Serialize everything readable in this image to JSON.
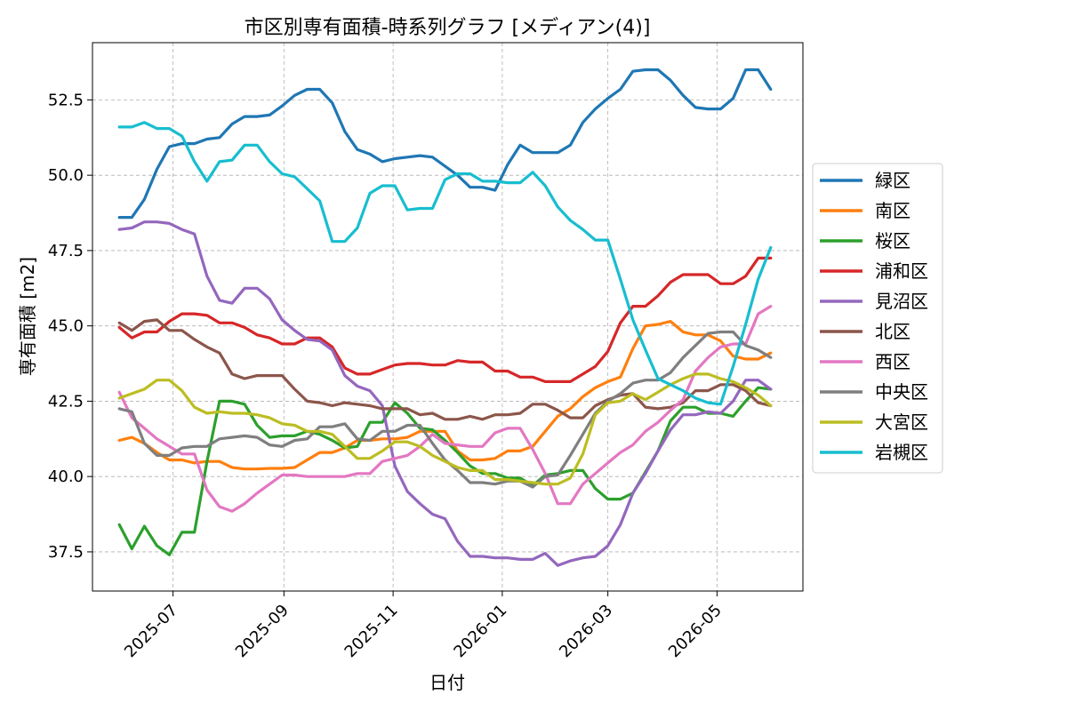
{
  "chart_data": {
    "type": "line",
    "title": "市区別専有面積-時系列グラフ [メディアン(4)]",
    "xlabel": "日付",
    "ylabel": "専有面積 [m2]",
    "x_range": [
      "2025-05-17",
      "2026-06-18"
    ],
    "ylim": [
      36.2,
      54.4
    ],
    "grid": true,
    "legend_position": "right",
    "x_ticks": [
      "2025-07-01",
      "2025-09-01",
      "2025-11-01",
      "2026-01-01",
      "2026-03-01",
      "2026-05-01"
    ],
    "x_tick_labels": [
      "2025-07",
      "2025-09",
      "2025-11",
      "2026-01",
      "2026-03",
      "2026-05"
    ],
    "y_ticks": [
      37.5,
      40.0,
      42.5,
      45.0,
      47.5,
      50.0,
      52.5
    ],
    "y_tick_labels": [
      "37.5",
      "40.0",
      "42.5",
      "45.0",
      "47.5",
      "50.0",
      "52.5"
    ],
    "x": [
      "2025-06-01",
      "2025-06-08",
      "2025-06-15",
      "2025-06-22",
      "2025-06-29",
      "2025-07-06",
      "2025-07-13",
      "2025-07-20",
      "2025-07-27",
      "2025-08-03",
      "2025-08-10",
      "2025-08-17",
      "2025-08-24",
      "2025-08-31",
      "2025-09-07",
      "2025-09-14",
      "2025-09-21",
      "2025-09-28",
      "2025-10-05",
      "2025-10-12",
      "2025-10-19",
      "2025-10-26",
      "2025-11-02",
      "2025-11-09",
      "2025-11-16",
      "2025-11-23",
      "2025-11-30",
      "2025-12-07",
      "2025-12-14",
      "2025-12-21",
      "2025-12-28",
      "2026-01-04",
      "2026-01-11",
      "2026-01-18",
      "2026-01-25",
      "2026-02-01",
      "2026-02-08",
      "2026-02-15",
      "2026-02-22",
      "2026-03-01",
      "2026-03-08",
      "2026-03-15",
      "2026-03-22",
      "2026-03-29",
      "2026-04-05",
      "2026-04-12",
      "2026-04-19",
      "2026-04-26",
      "2026-05-03",
      "2026-05-10",
      "2026-05-17",
      "2026-05-24",
      "2026-05-31"
    ],
    "series": [
      {
        "name": "緑区",
        "color": "#1f77b4",
        "values": [
          48.6,
          48.6,
          49.2,
          50.2,
          50.95,
          51.05,
          51.05,
          51.2,
          51.25,
          51.7,
          51.95,
          51.95,
          52.0,
          52.3,
          52.65,
          52.85,
          52.85,
          52.4,
          51.45,
          50.85,
          50.7,
          50.45,
          50.55,
          50.6,
          50.65,
          50.6,
          50.3,
          50.0,
          49.6,
          49.6,
          49.5,
          50.35,
          51.0,
          50.75,
          50.75,
          50.75,
          51.0,
          51.75,
          52.2,
          52.55,
          52.85,
          53.45,
          53.5,
          53.5,
          53.15,
          52.65,
          52.25,
          52.2,
          52.2,
          52.55,
          53.5,
          53.5,
          52.85
        ]
      },
      {
        "name": "南区",
        "color": "#ff7f0e",
        "values": [
          41.2,
          41.3,
          41.1,
          40.8,
          40.55,
          40.55,
          40.45,
          40.5,
          40.5,
          40.3,
          40.25,
          40.25,
          40.27,
          40.27,
          40.3,
          40.55,
          40.8,
          40.8,
          40.95,
          41.2,
          41.2,
          41.25,
          41.25,
          41.3,
          41.5,
          41.5,
          41.5,
          40.85,
          40.55,
          40.55,
          40.6,
          40.85,
          40.85,
          41.0,
          41.5,
          42.0,
          42.25,
          42.65,
          42.95,
          43.15,
          43.3,
          44.25,
          45.0,
          45.05,
          45.15,
          44.8,
          44.7,
          44.7,
          44.5,
          44.0,
          43.9,
          43.9,
          44.1
        ]
      },
      {
        "name": "桜区",
        "color": "#2ca02c",
        "values": [
          38.4,
          37.6,
          38.35,
          37.7,
          37.4,
          38.15,
          38.15,
          40.5,
          42.5,
          42.5,
          42.4,
          41.7,
          41.3,
          41.35,
          41.35,
          41.5,
          41.4,
          41.2,
          40.95,
          41.0,
          41.8,
          41.8,
          42.45,
          42.1,
          41.6,
          41.55,
          41.2,
          40.8,
          40.35,
          40.1,
          40.1,
          39.95,
          39.95,
          39.7,
          40.05,
          40.1,
          40.2,
          40.2,
          39.6,
          39.25,
          39.25,
          39.45,
          40.15,
          40.85,
          41.85,
          42.3,
          42.3,
          42.1,
          42.1,
          42.0,
          42.5,
          42.95,
          42.9
        ]
      },
      {
        "name": "浦和区",
        "color": "#d62728",
        "values": [
          44.95,
          44.6,
          44.8,
          44.8,
          45.15,
          45.4,
          45.4,
          45.35,
          45.1,
          45.1,
          44.95,
          44.7,
          44.6,
          44.4,
          44.4,
          44.6,
          44.6,
          44.3,
          43.6,
          43.4,
          43.4,
          43.55,
          43.7,
          43.75,
          43.75,
          43.7,
          43.7,
          43.85,
          43.8,
          43.8,
          43.5,
          43.5,
          43.3,
          43.3,
          43.15,
          43.15,
          43.15,
          43.4,
          43.65,
          44.15,
          45.1,
          45.65,
          45.65,
          46.0,
          46.45,
          46.7,
          46.7,
          46.7,
          46.4,
          46.4,
          46.65,
          47.25,
          47.25
        ]
      },
      {
        "name": "見沼区",
        "color": "#9467bd",
        "values": [
          48.2,
          48.25,
          48.45,
          48.45,
          48.4,
          48.2,
          48.05,
          46.65,
          45.85,
          45.75,
          46.25,
          46.25,
          45.9,
          45.2,
          44.85,
          44.55,
          44.5,
          44.2,
          43.35,
          43.0,
          42.85,
          42.35,
          40.35,
          39.5,
          39.1,
          38.75,
          38.6,
          37.85,
          37.35,
          37.35,
          37.3,
          37.3,
          37.25,
          37.25,
          37.45,
          37.05,
          37.2,
          37.3,
          37.35,
          37.7,
          38.4,
          39.45,
          40.1,
          40.85,
          41.55,
          42.05,
          42.05,
          42.15,
          42.1,
          42.5,
          43.2,
          43.2,
          42.9
        ]
      },
      {
        "name": "北区",
        "color": "#8c564b",
        "values": [
          45.1,
          44.85,
          45.15,
          45.2,
          44.85,
          44.85,
          44.55,
          44.3,
          44.1,
          43.4,
          43.25,
          43.35,
          43.35,
          43.35,
          42.9,
          42.5,
          42.45,
          42.35,
          42.45,
          42.4,
          42.35,
          42.25,
          42.25,
          42.25,
          42.05,
          42.1,
          41.9,
          41.9,
          42.0,
          41.9,
          42.05,
          42.05,
          42.1,
          42.4,
          42.4,
          42.2,
          41.95,
          41.95,
          42.35,
          42.55,
          42.7,
          42.75,
          42.3,
          42.25,
          42.3,
          42.45,
          42.85,
          42.85,
          43.05,
          43.05,
          42.85,
          42.45,
          42.35
        ]
      },
      {
        "name": "西区",
        "color": "#e377c2",
        "values": [
          42.8,
          41.95,
          41.6,
          41.25,
          41.0,
          40.75,
          40.75,
          39.55,
          39.0,
          38.85,
          39.1,
          39.45,
          39.75,
          40.05,
          40.05,
          40.0,
          40.0,
          40.0,
          40.0,
          40.1,
          40.1,
          40.5,
          40.6,
          40.7,
          41.0,
          41.4,
          41.1,
          41.05,
          41.0,
          41.0,
          41.45,
          41.6,
          41.6,
          40.9,
          40.1,
          39.1,
          39.1,
          39.75,
          40.1,
          40.45,
          40.8,
          41.05,
          41.5,
          41.8,
          42.2,
          42.55,
          43.5,
          43.95,
          44.3,
          44.4,
          44.4,
          45.4,
          45.65
        ]
      },
      {
        "name": "中央区",
        "color": "#7f7f7f",
        "values": [
          42.25,
          42.15,
          41.1,
          40.7,
          40.7,
          40.95,
          41.0,
          41.0,
          41.25,
          41.3,
          41.35,
          41.3,
          41.05,
          41.0,
          41.2,
          41.25,
          41.65,
          41.65,
          41.75,
          41.25,
          41.2,
          41.5,
          41.5,
          41.7,
          41.7,
          41.1,
          40.55,
          40.2,
          39.8,
          39.8,
          39.75,
          39.85,
          39.85,
          39.65,
          40.0,
          40.05,
          40.7,
          41.4,
          42.1,
          42.5,
          42.75,
          43.1,
          43.2,
          43.2,
          43.45,
          43.95,
          44.35,
          44.75,
          44.8,
          44.8,
          44.35,
          44.2,
          43.95
        ]
      },
      {
        "name": "大宮区",
        "color": "#bcbd22",
        "values": [
          42.6,
          42.75,
          42.9,
          43.2,
          43.2,
          42.85,
          42.3,
          42.1,
          42.15,
          42.1,
          42.1,
          42.05,
          41.95,
          41.75,
          41.7,
          41.5,
          41.5,
          41.4,
          41.0,
          40.6,
          40.6,
          40.85,
          41.15,
          41.15,
          41.0,
          40.7,
          40.5,
          40.3,
          40.2,
          40.2,
          39.9,
          39.9,
          39.85,
          39.8,
          39.75,
          39.75,
          39.95,
          40.75,
          42.05,
          42.45,
          42.5,
          42.75,
          42.55,
          42.8,
          43.05,
          43.25,
          43.4,
          43.4,
          43.25,
          43.15,
          42.95,
          42.7,
          42.35
        ]
      },
      {
        "name": "岩槻区",
        "color": "#17becf",
        "values": [
          51.6,
          51.6,
          51.75,
          51.55,
          51.55,
          51.3,
          50.45,
          49.8,
          50.45,
          50.5,
          51.0,
          51.0,
          50.45,
          50.05,
          49.95,
          49.55,
          49.15,
          47.8,
          47.8,
          48.25,
          49.4,
          49.65,
          49.65,
          48.85,
          48.9,
          48.9,
          49.85,
          50.05,
          50.05,
          49.8,
          49.8,
          49.75,
          49.75,
          50.1,
          49.65,
          48.95,
          48.5,
          48.2,
          47.85,
          47.85,
          46.55,
          45.2,
          44.2,
          43.25,
          43.05,
          42.85,
          42.6,
          42.45,
          42.4,
          43.65,
          45.05,
          46.55,
          47.6
        ]
      }
    ]
  }
}
